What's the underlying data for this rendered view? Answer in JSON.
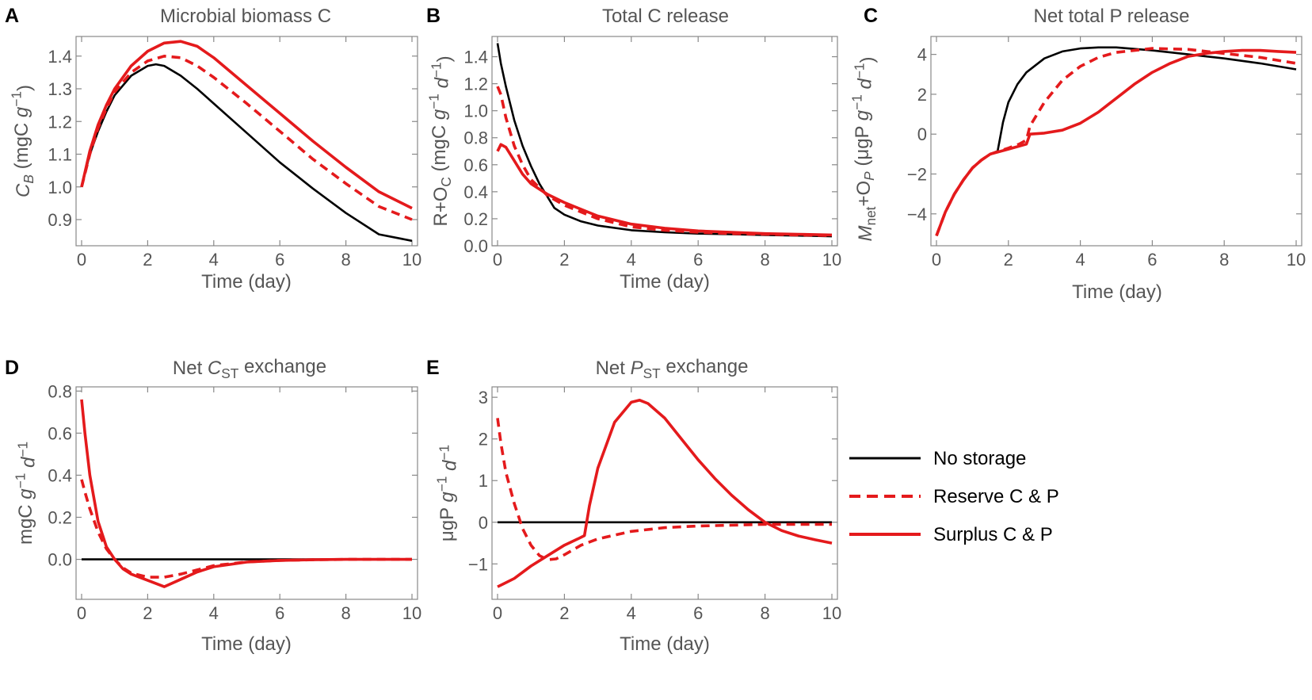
{
  "colors": {
    "no_storage": "#000000",
    "reserve": "#e41a1c",
    "surplus": "#e41a1c",
    "axis": "#888888",
    "text": "#555555"
  },
  "legend": {
    "items": [
      {
        "label": "No storage",
        "style": "solid",
        "color": "#000000"
      },
      {
        "label": "Reserve C & P",
        "style": "dashed",
        "color": "#e41a1c"
      },
      {
        "label": "Surplus C & P",
        "style": "solid",
        "color": "#e41a1c"
      }
    ]
  },
  "chart_data": [
    {
      "id": "A",
      "letter": "A",
      "type": "line",
      "title": "Microbial biomass C",
      "xlabel": "Time (day)",
      "ylabel": "C_B (mgC g^-1)",
      "ylabel_parts": [
        {
          "t": "C",
          "it": true
        },
        {
          "t": "B",
          "sub": true,
          "it": true
        },
        {
          "t": " (mgC "
        },
        {
          "t": "g",
          "it": true
        },
        {
          "t": "−1",
          "sup": true
        },
        {
          "t": ")"
        }
      ],
      "xlim": [
        0,
        10
      ],
      "ylim": [
        0.82,
        1.46
      ],
      "xticks": [
        0,
        2,
        4,
        6,
        8,
        10
      ],
      "xtick_labels": [
        "0",
        "2",
        "4",
        "6",
        "8",
        "10"
      ],
      "yticks": [
        0.9,
        1.0,
        1.1,
        1.2,
        1.3,
        1.4
      ],
      "ytick_labels": [
        "0.9",
        "1.0",
        "1.1",
        "1.2",
        "1.3",
        "1.4"
      ],
      "series": [
        {
          "name": "No storage",
          "x": [
            0,
            0.25,
            0.5,
            0.75,
            1,
            1.5,
            2,
            2.25,
            2.5,
            3,
            3.5,
            4,
            5,
            6,
            7,
            8,
            9,
            10
          ],
          "y": [
            1.0,
            1.1,
            1.17,
            1.23,
            1.28,
            1.34,
            1.37,
            1.375,
            1.37,
            1.34,
            1.3,
            1.255,
            1.165,
            1.075,
            0.995,
            0.92,
            0.855,
            0.835
          ]
        },
        {
          "name": "Reserve C & P",
          "x": [
            0,
            0.25,
            0.5,
            0.75,
            1,
            1.5,
            2,
            2.5,
            3,
            3.5,
            4,
            5,
            6,
            7,
            8,
            9,
            10
          ],
          "y": [
            1.0,
            1.1,
            1.18,
            1.24,
            1.29,
            1.35,
            1.385,
            1.4,
            1.395,
            1.37,
            1.335,
            1.255,
            1.17,
            1.085,
            1.01,
            0.94,
            0.9
          ]
        },
        {
          "name": "Surplus C & P",
          "x": [
            0,
            0.25,
            0.5,
            0.75,
            1,
            1.5,
            2,
            2.5,
            3,
            3.5,
            4,
            5,
            6,
            7,
            8,
            9,
            10
          ],
          "y": [
            1.0,
            1.11,
            1.19,
            1.25,
            1.3,
            1.37,
            1.415,
            1.44,
            1.445,
            1.43,
            1.395,
            1.31,
            1.225,
            1.14,
            1.06,
            0.985,
            0.935
          ]
        }
      ]
    },
    {
      "id": "B",
      "letter": "B",
      "type": "line",
      "title": "Total C release",
      "xlabel": "Time (day)",
      "ylabel": "R+O_C (mgC g^-1 d^-1)",
      "ylabel_parts": [
        {
          "t": "R+O"
        },
        {
          "t": "C",
          "sub": true
        },
        {
          "t": " (mgC "
        },
        {
          "t": "g",
          "it": true
        },
        {
          "t": "−1",
          "sup": true
        },
        {
          "t": " "
        },
        {
          "t": "d",
          "it": true
        },
        {
          "t": "−1",
          "sup": true
        },
        {
          "t": ")"
        }
      ],
      "xlim": [
        0,
        10
      ],
      "ylim": [
        0,
        1.55
      ],
      "xticks": [
        0,
        2,
        4,
        6,
        8,
        10
      ],
      "xtick_labels": [
        "0",
        "2",
        "4",
        "6",
        "8",
        "10"
      ],
      "yticks": [
        0,
        0.2,
        0.4,
        0.6,
        0.8,
        1.0,
        1.2,
        1.4
      ],
      "ytick_labels": [
        "0.0",
        "0.2",
        "0.4",
        "0.6",
        "0.8",
        "1.0",
        "1.2",
        "1.4"
      ],
      "series": [
        {
          "name": "No storage",
          "x": [
            0,
            0.1,
            0.25,
            0.5,
            0.75,
            1,
            1.25,
            1.5,
            1.7,
            2,
            2.5,
            3,
            4,
            5,
            6,
            7,
            8,
            9,
            10
          ],
          "y": [
            1.5,
            1.35,
            1.18,
            0.93,
            0.74,
            0.59,
            0.46,
            0.36,
            0.28,
            0.23,
            0.18,
            0.15,
            0.115,
            0.1,
            0.09,
            0.085,
            0.08,
            0.075,
            0.07
          ]
        },
        {
          "name": "Reserve C & P",
          "x": [
            0,
            0.1,
            0.25,
            0.5,
            0.75,
            1,
            1.5,
            2,
            2.5,
            3,
            4,
            5,
            6,
            7,
            8,
            9,
            10
          ],
          "y": [
            1.18,
            1.12,
            0.95,
            0.74,
            0.6,
            0.49,
            0.37,
            0.3,
            0.25,
            0.2,
            0.14,
            0.115,
            0.1,
            0.09,
            0.085,
            0.08,
            0.075
          ]
        },
        {
          "name": "Surplus C & P",
          "x": [
            0,
            0.1,
            0.25,
            0.5,
            0.75,
            1,
            1.5,
            2,
            2.5,
            3,
            4,
            5,
            6,
            7,
            8,
            9,
            10
          ],
          "y": [
            0.7,
            0.75,
            0.73,
            0.63,
            0.53,
            0.46,
            0.38,
            0.32,
            0.27,
            0.22,
            0.16,
            0.13,
            0.11,
            0.1,
            0.09,
            0.085,
            0.08
          ]
        }
      ]
    },
    {
      "id": "C",
      "letter": "C",
      "type": "line",
      "title": "Net total P release",
      "xlabel": "Time (day)",
      "ylabel": "M_net+O_P (μgP g^-1 d^-1)",
      "ylabel_parts": [
        {
          "t": "M",
          "it": true
        },
        {
          "t": "net",
          "sub": true
        },
        {
          "t": "+O"
        },
        {
          "t": "P",
          "sub": true,
          "it": true
        },
        {
          "t": " (μgP "
        },
        {
          "t": "g",
          "it": true
        },
        {
          "t": "−1",
          "sup": true
        },
        {
          "t": " "
        },
        {
          "t": "d",
          "it": true
        },
        {
          "t": "−1",
          "sup": true
        },
        {
          "t": ")"
        }
      ],
      "xlim": [
        0,
        10
      ],
      "ylim": [
        -5.6,
        4.9
      ],
      "xticks": [
        0,
        2,
        4,
        6,
        8,
        10
      ],
      "xtick_labels": [
        "0",
        "2",
        "4",
        "6",
        "8",
        "10"
      ],
      "yticks": [
        -4,
        -2,
        0,
        2,
        4
      ],
      "ytick_labels": [
        "−4",
        "−2",
        "0",
        "2",
        "4"
      ],
      "series": [
        {
          "name": "No storage",
          "x": [
            0,
            0.25,
            0.5,
            0.75,
            1,
            1.25,
            1.5,
            1.7,
            1.85,
            2,
            2.25,
            2.5,
            3,
            3.5,
            4,
            4.5,
            5,
            6,
            7,
            8,
            9,
            10
          ],
          "y": [
            -5.1,
            -3.9,
            -3.0,
            -2.3,
            -1.7,
            -1.3,
            -1.0,
            -0.85,
            0.6,
            1.6,
            2.5,
            3.1,
            3.8,
            4.15,
            4.3,
            4.35,
            4.35,
            4.2,
            4.0,
            3.8,
            3.55,
            3.25
          ]
        },
        {
          "name": "Reserve C & P",
          "x": [
            0,
            0.25,
            0.5,
            0.75,
            1,
            1.25,
            1.5,
            2,
            2.3,
            2.5,
            2.6,
            3,
            3.5,
            4,
            4.5,
            5,
            6,
            7,
            8,
            9,
            10
          ],
          "y": [
            -5.1,
            -3.9,
            -3.0,
            -2.3,
            -1.7,
            -1.3,
            -1.0,
            -0.7,
            -0.5,
            -0.3,
            0.4,
            1.6,
            2.7,
            3.4,
            3.85,
            4.1,
            4.3,
            4.25,
            4.05,
            3.85,
            3.55
          ]
        },
        {
          "name": "Surplus C & P",
          "x": [
            0,
            0.25,
            0.5,
            0.75,
            1,
            1.25,
            1.5,
            2,
            2.5,
            2.6,
            3,
            3.5,
            4,
            4.5,
            5,
            5.5,
            6,
            6.5,
            7,
            7.5,
            8,
            8.5,
            9,
            9.5,
            10
          ],
          "y": [
            -5.1,
            -3.9,
            -3.0,
            -2.3,
            -1.7,
            -1.3,
            -1.0,
            -0.75,
            -0.5,
            0.0,
            0.05,
            0.2,
            0.55,
            1.1,
            1.8,
            2.5,
            3.1,
            3.55,
            3.9,
            4.05,
            4.15,
            4.2,
            4.2,
            4.15,
            4.1
          ]
        }
      ]
    },
    {
      "id": "D",
      "letter": "D",
      "type": "line",
      "title": "Net C_ST exchange",
      "title_parts": [
        {
          "t": "Net "
        },
        {
          "t": "C",
          "it": true
        },
        {
          "t": "ST",
          "sub": true
        },
        {
          "t": " exchange"
        }
      ],
      "xlabel": "Time (day)",
      "ylabel": "mgC g^-1 d^-1",
      "ylabel_parts": [
        {
          "t": "mgC "
        },
        {
          "t": "g",
          "it": true
        },
        {
          "t": "−1",
          "sup": true
        },
        {
          "t": " "
        },
        {
          "t": "d",
          "it": true
        },
        {
          "t": "−1",
          "sup": true
        }
      ],
      "xlim": [
        0,
        10
      ],
      "ylim": [
        -0.19,
        0.82
      ],
      "xticks": [
        0,
        2,
        4,
        6,
        8,
        10
      ],
      "xtick_labels": [
        "0",
        "2",
        "4",
        "6",
        "8",
        "10"
      ],
      "yticks": [
        0.0,
        0.2,
        0.4,
        0.6,
        0.8
      ],
      "ytick_labels": [
        "0.0",
        "0.2",
        "0.4",
        "0.6",
        "0.8"
      ],
      "series": [
        {
          "name": "No storage",
          "x": [
            0,
            10
          ],
          "y": [
            0,
            0
          ]
        },
        {
          "name": "Reserve C & P",
          "x": [
            0,
            0.1,
            0.25,
            0.5,
            0.75,
            1,
            1.25,
            1.5,
            2,
            2.5,
            3,
            3.5,
            4,
            5,
            6,
            7,
            8,
            9,
            10
          ],
          "y": [
            0.38,
            0.32,
            0.24,
            0.13,
            0.05,
            0.0,
            -0.04,
            -0.065,
            -0.085,
            -0.085,
            -0.07,
            -0.05,
            -0.03,
            -0.012,
            -0.005,
            -0.002,
            0,
            0,
            0
          ]
        },
        {
          "name": "Surplus C & P",
          "x": [
            0,
            0.1,
            0.25,
            0.5,
            0.75,
            1,
            1.25,
            1.5,
            2,
            2.5,
            3,
            3.5,
            4,
            5,
            6,
            7,
            8,
            9,
            10
          ],
          "y": [
            0.76,
            0.6,
            0.4,
            0.18,
            0.06,
            0.0,
            -0.045,
            -0.07,
            -0.1,
            -0.13,
            -0.095,
            -0.06,
            -0.035,
            -0.013,
            -0.005,
            -0.002,
            0,
            0,
            0
          ]
        }
      ]
    },
    {
      "id": "E",
      "letter": "E",
      "type": "line",
      "title": "Net P_ST exchange",
      "title_parts": [
        {
          "t": "Net "
        },
        {
          "t": "P",
          "it": true
        },
        {
          "t": "ST",
          "sub": true
        },
        {
          "t": " exchange"
        }
      ],
      "xlabel": "Time (day)",
      "ylabel": "μgP g^-1 d^-1",
      "ylabel_parts": [
        {
          "t": "μgP "
        },
        {
          "t": "g",
          "it": true
        },
        {
          "t": "−1",
          "sup": true
        },
        {
          "t": " "
        },
        {
          "t": "d",
          "it": true
        },
        {
          "t": "−1",
          "sup": true
        }
      ],
      "xlim": [
        0,
        10
      ],
      "ylim": [
        -1.85,
        3.25
      ],
      "xticks": [
        0,
        2,
        4,
        6,
        8,
        10
      ],
      "xtick_labels": [
        "0",
        "2",
        "4",
        "6",
        "8",
        "10"
      ],
      "yticks": [
        -1,
        0,
        1,
        2,
        3
      ],
      "ytick_labels": [
        "−1",
        "0",
        "1",
        "2",
        "3"
      ],
      "series": [
        {
          "name": "No storage",
          "x": [
            0,
            10
          ],
          "y": [
            0,
            0
          ]
        },
        {
          "name": "Reserve C & P",
          "x": [
            0,
            0.1,
            0.25,
            0.5,
            0.75,
            1,
            1.25,
            1.5,
            1.75,
            2,
            2.5,
            3,
            4,
            5,
            6,
            7,
            8,
            9,
            10
          ],
          "y": [
            2.5,
            1.9,
            1.2,
            0.45,
            -0.15,
            -0.55,
            -0.8,
            -0.9,
            -0.88,
            -0.78,
            -0.55,
            -0.4,
            -0.22,
            -0.13,
            -0.09,
            -0.07,
            -0.05,
            -0.05,
            -0.05
          ]
        },
        {
          "name": "Surplus C & P",
          "x": [
            0,
            0.5,
            1,
            1.5,
            2,
            2.4,
            2.6,
            2.75,
            3,
            3.5,
            4,
            4.25,
            4.5,
            5,
            5.5,
            6,
            6.5,
            7,
            7.5,
            8,
            8.5,
            9,
            9.5,
            10
          ],
          "y": [
            -1.55,
            -1.35,
            -1.05,
            -0.8,
            -0.55,
            -0.4,
            -0.32,
            0.4,
            1.3,
            2.4,
            2.88,
            2.93,
            2.85,
            2.5,
            2.0,
            1.5,
            1.05,
            0.65,
            0.3,
            0.0,
            -0.2,
            -0.33,
            -0.42,
            -0.5
          ]
        }
      ]
    }
  ]
}
